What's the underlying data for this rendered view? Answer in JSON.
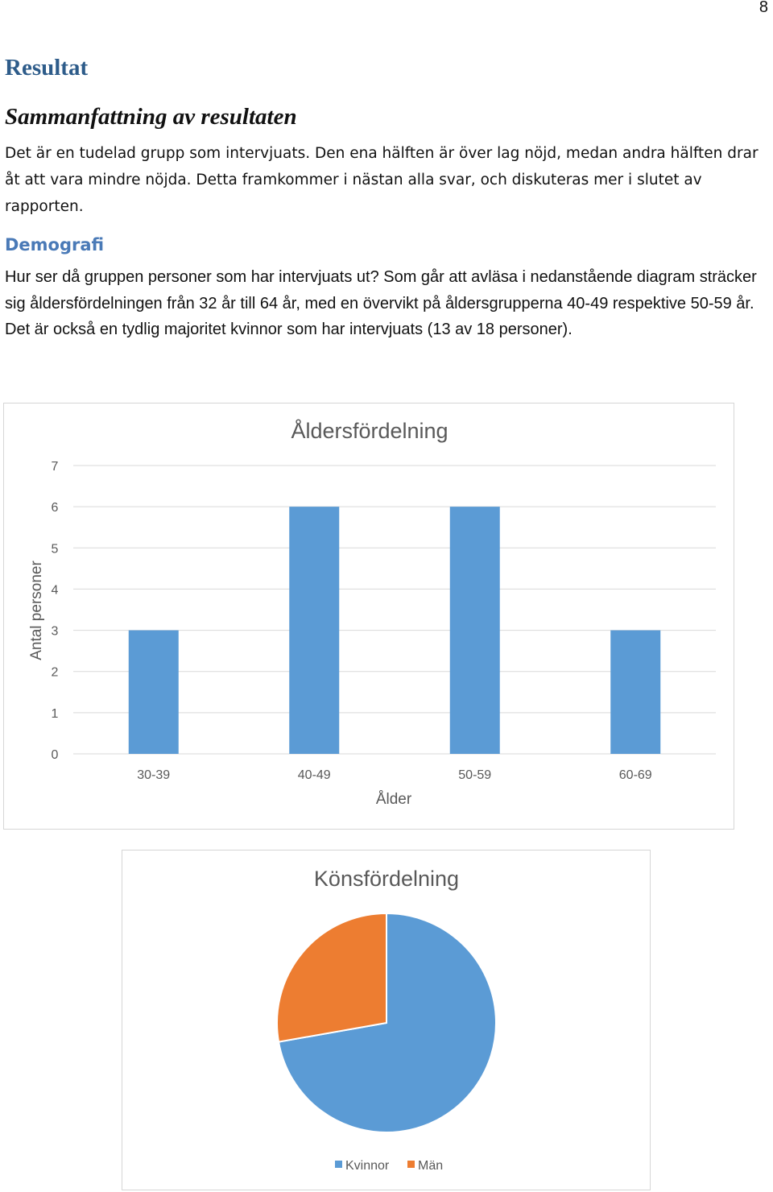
{
  "page": {
    "number": "8"
  },
  "headings": {
    "result": "Resultat",
    "summary": "Sammanfattning av resultaten",
    "demography": "Demografi"
  },
  "paragraphs": {
    "summary_text": "Det är en tudelad grupp som intervjuats. Den ena hälften är över lag nöjd, medan andra hälften drar åt att vara mindre nöjda. Detta framkommer i nästan alla svar, och diskuteras mer i slutet av rapporten.",
    "demography_text": "Hur ser då gruppen personer som har intervjuats ut? Som går att avläsa i nedanstående diagram sträcker sig åldersfördelningen från 32 år till 64 år, med en övervikt på åldersgrupperna 40-49 respektive 50-59 år. Det är också en tydlig majoritet kvinnor som har intervjuats (13 av 18 personer)."
  },
  "colors": {
    "blue": "#5b9bd5",
    "orange": "#ed7d31",
    "grid": "#d9d9d9",
    "text": "#595959"
  },
  "chart_data": [
    {
      "type": "bar",
      "title": "Åldersfördelning",
      "xlabel": "Ålder",
      "ylabel": "Antal personer",
      "categories": [
        "30-39",
        "40-49",
        "50-59",
        "60-69"
      ],
      "values": [
        3,
        6,
        6,
        3
      ],
      "ylim": [
        0,
        7
      ],
      "yticks": [
        0,
        1,
        2,
        3,
        4,
        5,
        6,
        7
      ],
      "grid": true,
      "legend": "none"
    },
    {
      "type": "pie",
      "title": "Könsfördelning",
      "labels": [
        "Kvinnor",
        "Män"
      ],
      "values": [
        13,
        5
      ],
      "legend": "bottom"
    }
  ]
}
